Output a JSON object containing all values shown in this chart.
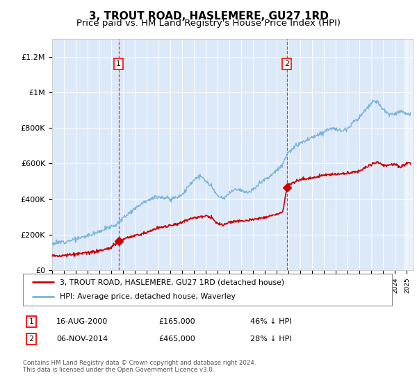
{
  "title": "3, TROUT ROAD, HASLEMERE, GU27 1RD",
  "subtitle": "Price paid vs. HM Land Registry's House Price Index (HPI)",
  "ylim": [
    0,
    1300000
  ],
  "yticks": [
    0,
    200000,
    400000,
    600000,
    800000,
    1000000,
    1200000
  ],
  "ytick_labels": [
    "£0",
    "£200K",
    "£400K",
    "£600K",
    "£800K",
    "£1M",
    "£1.2M"
  ],
  "xlim_start": 1995.0,
  "xlim_end": 2025.5,
  "background_color": "#dce9f8",
  "hpi_color": "#7ab4d8",
  "price_color": "#cc0000",
  "sale1_x": 2000.62,
  "sale1_y": 165000,
  "sale1_label": "1",
  "sale2_x": 2014.84,
  "sale2_y": 465000,
  "sale2_label": "2",
  "legend_line1": "3, TROUT ROAD, HASLEMERE, GU27 1RD (detached house)",
  "legend_line2": "HPI: Average price, detached house, Waverley",
  "table_row1": [
    "1",
    "16-AUG-2000",
    "£165,000",
    "46% ↓ HPI"
  ],
  "table_row2": [
    "2",
    "06-NOV-2014",
    "£465,000",
    "28% ↓ HPI"
  ],
  "footer": "Contains HM Land Registry data © Crown copyright and database right 2024.\nThis data is licensed under the Open Government Licence v3.0.",
  "title_fontsize": 11,
  "subtitle_fontsize": 9.5
}
